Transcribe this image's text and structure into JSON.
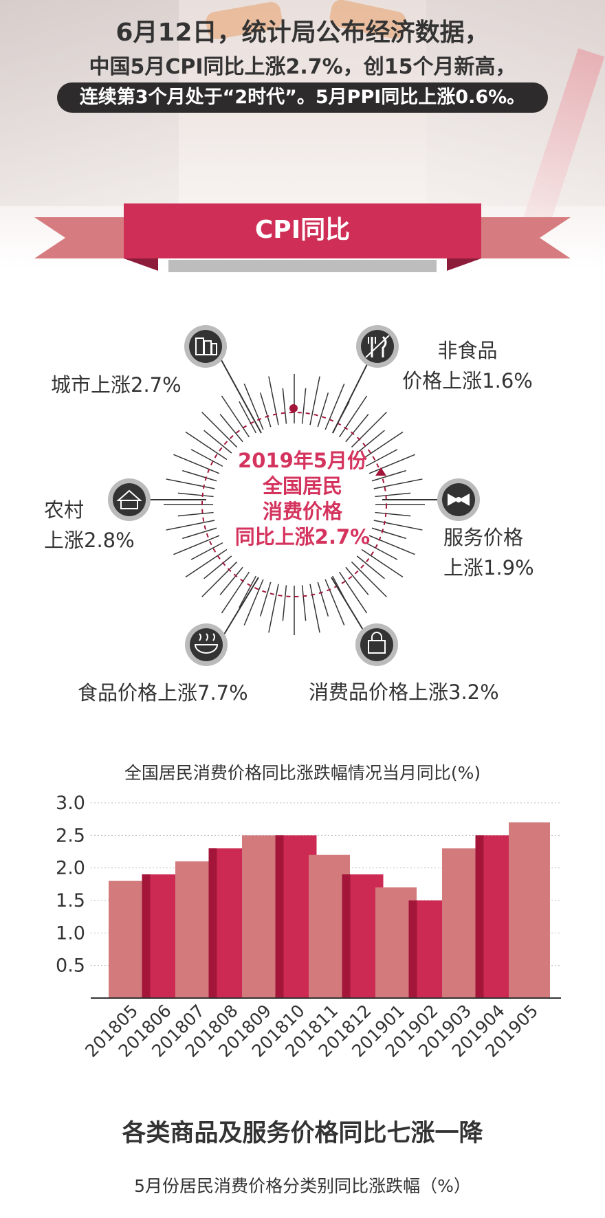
{
  "header": {
    "line1": "6月12日，统计局公布经济数据，",
    "line2": "中国5月CPI同比上涨2.7%，创15个月新高，",
    "line3": "连续第3个月处于“2时代”。5月PPI同比上涨0.6%。"
  },
  "ribbon": {
    "title": "CPI同比"
  },
  "radial": {
    "center": [
      "2019年5月份",
      "全国居民",
      "消费价格",
      "同比上涨2.7%"
    ],
    "items": [
      {
        "icon": "building-icon",
        "lines": [
          "城市上涨2.7%"
        ]
      },
      {
        "icon": "fork-knife-icon",
        "lines": [
          "非食品",
          "价格上涨1.6%"
        ]
      },
      {
        "icon": "house-icon",
        "lines": [
          "农村",
          "上涨2.8%"
        ]
      },
      {
        "icon": "bow-tie-icon",
        "lines": [
          "服务价格",
          "上涨1.9%"
        ]
      },
      {
        "icon": "bowl-icon",
        "lines": [
          "食品价格上涨7.7%"
        ]
      },
      {
        "icon": "shopping-bag-icon",
        "lines": [
          "消费品价格上涨3.2%"
        ]
      }
    ],
    "colors": {
      "accent": "#d4335d",
      "dark": "#333333"
    }
  },
  "chart_data": {
    "type": "bar",
    "title": "全国居民消费价格同比涨跌幅情况当月同比(%)",
    "categories": [
      "201805",
      "201806",
      "201807",
      "201808",
      "201809",
      "201810",
      "201811",
      "201812",
      "201901",
      "201902",
      "201903",
      "201904",
      "201905"
    ],
    "values": [
      1.8,
      1.9,
      2.1,
      2.3,
      2.5,
      2.5,
      2.2,
      1.9,
      1.7,
      1.5,
      2.3,
      2.5,
      2.7
    ],
    "yticks": [
      "0.5",
      "1.0",
      "1.5",
      "2.0",
      "2.5",
      "3.0"
    ],
    "ylim": [
      0,
      3.0
    ],
    "grid": true,
    "colors": {
      "light": "#d27a7c",
      "dark": "#cc2a52",
      "shadow": "#a3163a"
    }
  },
  "section": {
    "title": "各类商品及服务价格同比七涨一降",
    "subtitle": "5月份居民消费价格分类别同比涨跌幅（%）"
  }
}
